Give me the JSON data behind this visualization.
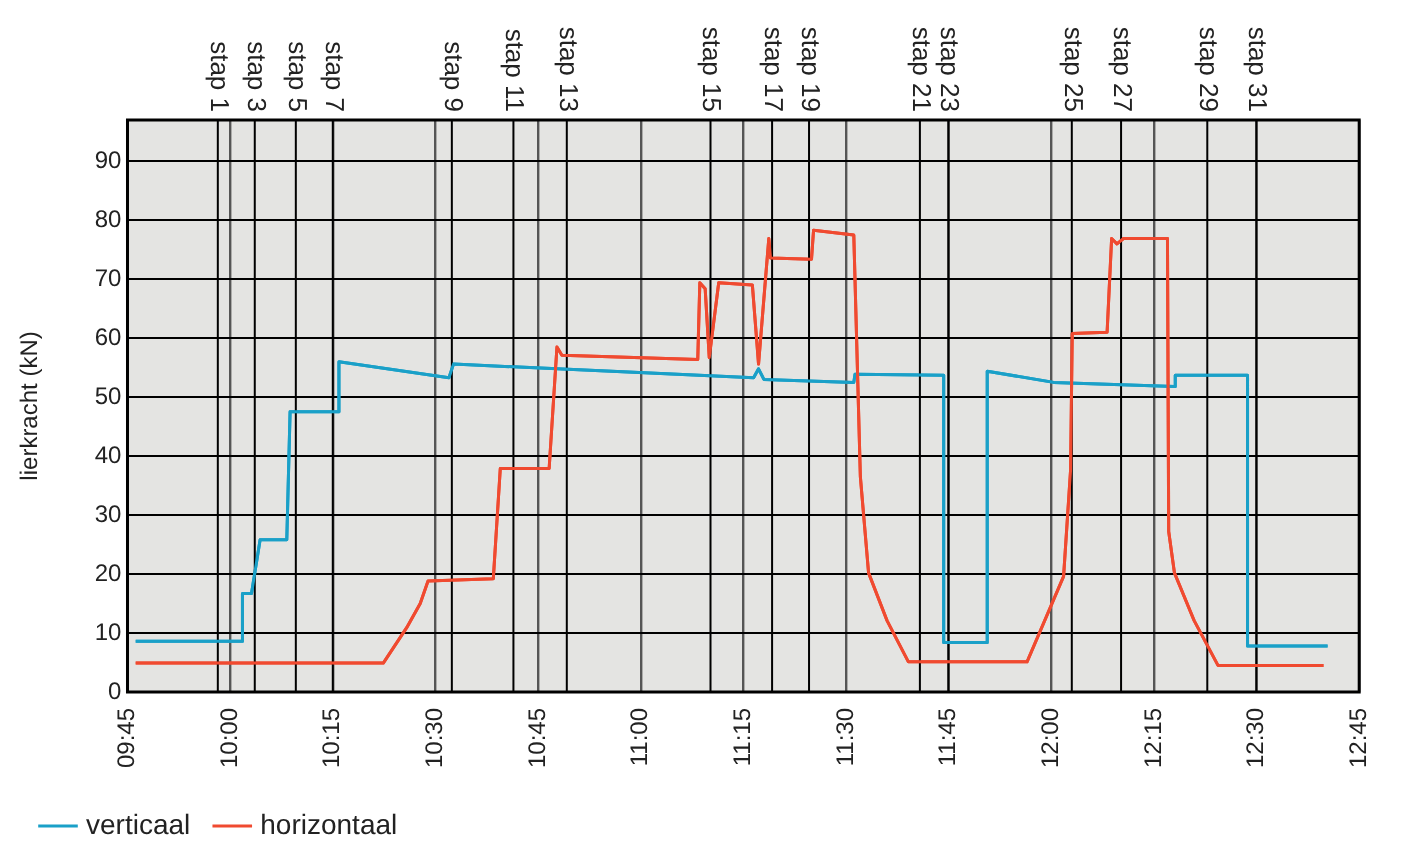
{
  "chart_data": {
    "type": "line",
    "ylabel": "lierkracht (kN)",
    "xlim": [
      9.75,
      12.75
    ],
    "ylim": [
      0,
      97
    ],
    "xticks": [
      {
        "value": 9.75,
        "label": "09:45"
      },
      {
        "value": 10,
        "label": "10:00"
      },
      {
        "value": 10.25,
        "label": "10:15"
      },
      {
        "value": 10.5,
        "label": "10:30"
      },
      {
        "value": 10.75,
        "label": "10:45"
      },
      {
        "value": 11,
        "label": "11:00"
      },
      {
        "value": 11.25,
        "label": "11:15"
      },
      {
        "value": 11.5,
        "label": "11:30"
      },
      {
        "value": 11.75,
        "label": "11:45"
      },
      {
        "value": 12,
        "label": "12:00"
      },
      {
        "value": 12.25,
        "label": "12:15"
      },
      {
        "value": 12.5,
        "label": "12:30"
      },
      {
        "value": 12.75,
        "label": "12:45"
      }
    ],
    "yticks": [
      0,
      10,
      20,
      30,
      40,
      50,
      60,
      70,
      80,
      90
    ],
    "grid": true,
    "legend": "bottom",
    "marker": "none",
    "line_style": "solid",
    "series": [
      {
        "name": "verticaal",
        "color": "#1aa0c8",
        "x": [
          9.77,
          10.03,
          10.03,
          10.052,
          10.073,
          10.138,
          10.146,
          10.265,
          10.265,
          10.533,
          10.544,
          11.275,
          11.287,
          11.3,
          11.519,
          11.522,
          11.738,
          11.738,
          11.844,
          11.844,
          12.006,
          12.3,
          12.302,
          12.478,
          12.478,
          12.673
        ],
        "values": [
          8.6,
          8.6,
          16.7,
          16.7,
          25.8,
          25.8,
          47.5,
          47.5,
          56,
          53.3,
          55.6,
          53.3,
          54.8,
          53,
          52.5,
          53.9,
          53.7,
          8.4,
          8.4,
          54.4,
          52.5,
          51.8,
          53.7,
          53.7,
          7.8,
          7.8
        ]
      },
      {
        "name": "horizontaal",
        "color": "#f04a30",
        "x": [
          9.77,
          10.373,
          10.43,
          10.463,
          10.482,
          10.641,
          10.658,
          10.777,
          10.796,
          10.808,
          11.139,
          11.144,
          11.157,
          11.167,
          11.19,
          11.272,
          11.287,
          11.312,
          11.316,
          11.416,
          11.421,
          11.519,
          11.535,
          11.555,
          11.6,
          11.652,
          11.941,
          12.03,
          12.047,
          12.051,
          12.136,
          12.147,
          12.16,
          12.176,
          12.283,
          12.286,
          12.3,
          12.348,
          12.406,
          12.663
        ],
        "values": [
          4.9,
          4.9,
          10.9,
          15,
          18.8,
          19.2,
          37.9,
          37.9,
          58.5,
          57.1,
          56.4,
          69.4,
          68.4,
          56.7,
          69.4,
          69,
          55.6,
          76.9,
          73.6,
          73.4,
          78.3,
          77.5,
          36.5,
          20.2,
          12.1,
          5.1,
          5.1,
          19.6,
          37.6,
          60.8,
          61,
          76.9,
          76,
          76.9,
          76.9,
          27.2,
          20.2,
          12.1,
          4.5,
          4.5
        ]
      }
    ],
    "ref_lines": [
      {
        "axis": "x",
        "value": 9.97,
        "label": "stap 1"
      },
      {
        "axis": "x",
        "value": 10.06,
        "label": "stap 3"
      },
      {
        "axis": "x",
        "value": 10.16,
        "label": "stap 5"
      },
      {
        "axis": "x",
        "value": 10.25,
        "label": "stap 7"
      },
      {
        "axis": "x",
        "value": 10.54,
        "label": "stap 9"
      },
      {
        "axis": "x",
        "value": 10.69,
        "label": "stap 11"
      },
      {
        "axis": "x",
        "value": 10.82,
        "label": "stap 13"
      },
      {
        "axis": "x",
        "value": 11.17,
        "label": "stap 15"
      },
      {
        "axis": "x",
        "value": 11.32,
        "label": "stap 17"
      },
      {
        "axis": "x",
        "value": 11.41,
        "label": "stap 19"
      },
      {
        "axis": "x",
        "value": 11.68,
        "label": "stap 21"
      },
      {
        "axis": "x",
        "value": 11.75,
        "label": "stap 23"
      },
      {
        "axis": "x",
        "value": 12.05,
        "label": "stap 25"
      },
      {
        "axis": "x",
        "value": 12.17,
        "label": "stap 27"
      },
      {
        "axis": "x",
        "value": 12.38,
        "label": "stap 29"
      },
      {
        "axis": "x",
        "value": 12.5,
        "label": "stap 31"
      }
    ]
  }
}
